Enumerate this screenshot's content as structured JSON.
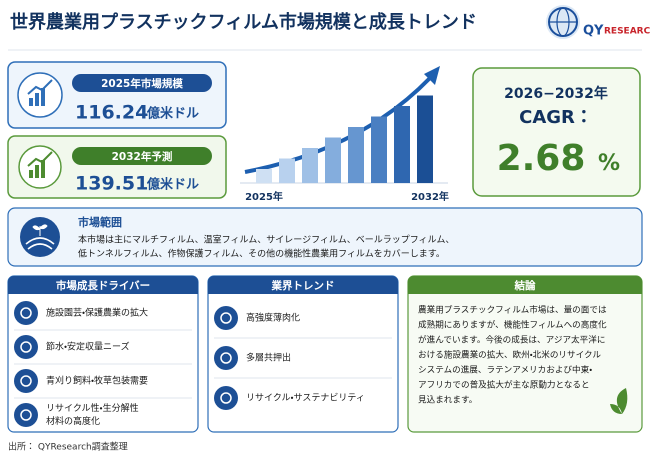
{
  "header": {
    "title": "世界農業用プラスチックフィルム市場規模と成長トレンド",
    "logo_prefix": "QY",
    "logo_suffix": "RESEARCH"
  },
  "stats": [
    {
      "label": "2025年市場規模",
      "value": "116.24",
      "unit": "億米ドル"
    },
    {
      "label": "2032年予測",
      "value": "139.51",
      "unit": "億米ドル"
    }
  ],
  "growth_chart": {
    "start_label": "2025年",
    "end_label": "2032年"
  },
  "cagr": {
    "period": "2026−2032年",
    "label": "CAGR：",
    "value": "2.68",
    "unit": "%"
  },
  "scope": {
    "title": "市場範囲",
    "lines": [
      "本市場は主にマルチフィルム、温室フィルム、サイレージフィルム、ベールラップフィルム、",
      "低トンネルフィルム、作物保護フィルム、その他の機能性農業用フィルムをカバーします。"
    ]
  },
  "drivers": {
    "title": "市場成長ドライバー",
    "items": [
      [
        "施設園芸・保護農業の拡大"
      ],
      [
        "節水・安定収量ニーズ"
      ],
      [
        "青刈り飼料・牧草包装需要"
      ],
      [
        "リサイクル性・生分解性",
        "材料の高度化"
      ]
    ]
  },
  "trends": {
    "title": "業界トレンド",
    "items": [
      [
        "高強度薄肉化"
      ],
      [
        "多層共押出"
      ],
      [
        "リサイクル・サステナビリティ"
      ]
    ]
  },
  "conclusion": {
    "title": "結論",
    "lines": [
      "農業用プラスチックフィルム市場は、量の面では",
      "成熟期にありますが、機能性フィルムへの高度化",
      "が進んでいます。今後の成長は、アジア太平洋に",
      "おける施設農業の拡大、欧州・北米のリサイクル",
      "システムの進展、ラテンアメリカおよび中東・",
      "アフリカでの普及拡大が主な原動力となると",
      "見込まれます。"
    ]
  },
  "source": "出所： QYResearch調査整理"
}
